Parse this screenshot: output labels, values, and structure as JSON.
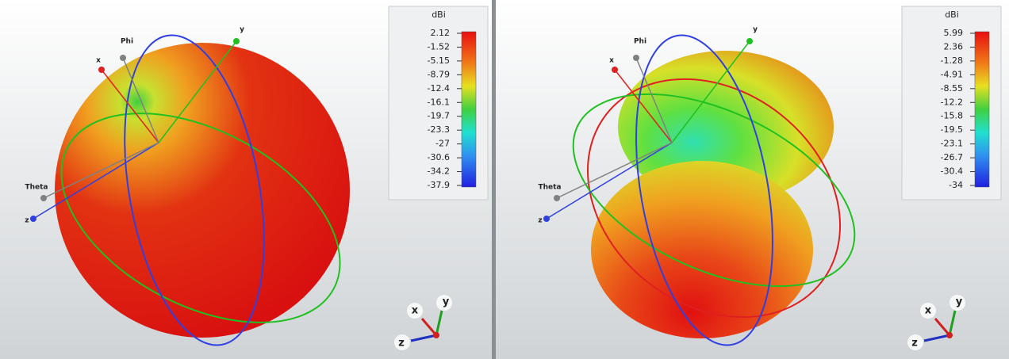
{
  "panels": [
    {
      "unit": "dBi",
      "scale": [
        "2.12",
        "-1.52",
        "-5.15",
        "-8.79",
        "-12.4",
        "-16.1",
        "-19.7",
        "-23.3",
        "-27",
        "-30.6",
        "-34.2",
        "-37.9"
      ],
      "axes": {
        "phi": "Phi",
        "y": "y",
        "x": "x",
        "theta": "Theta",
        "z": "z"
      },
      "triad": {
        "x": "x",
        "y": "y",
        "z": "z"
      }
    },
    {
      "unit": "dBi",
      "scale": [
        "5.99",
        "2.36",
        "-1.28",
        "-4.91",
        "-8.55",
        "-12.2",
        "-15.8",
        "-19.5",
        "-23.1",
        "-26.7",
        "-30.4",
        "-34"
      ],
      "axes": {
        "phi": "Phi",
        "y": "y",
        "x": "x",
        "theta": "Theta",
        "z": "z"
      },
      "triad": {
        "x": "x",
        "y": "y",
        "z": "z"
      }
    }
  ]
}
